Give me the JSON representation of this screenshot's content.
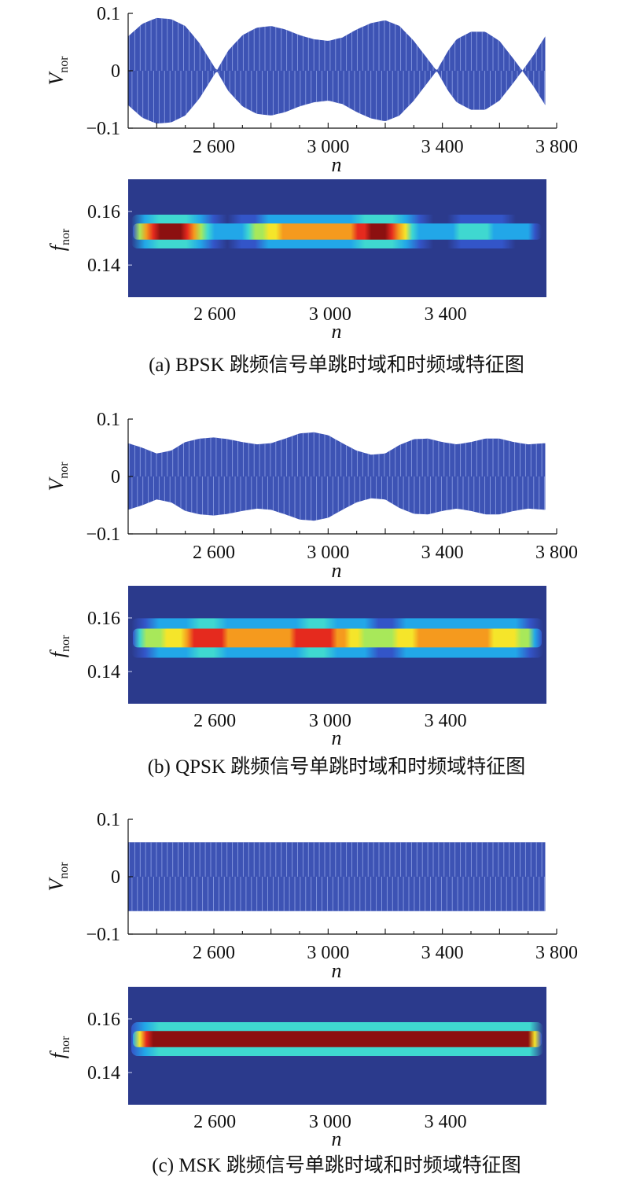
{
  "figure": {
    "panels": [
      {
        "caption": "(a) BPSK 跳频信号单跳时域和时频域特征图"
      },
      {
        "caption": "(b) QPSK 跳频信号单跳时域和时频域特征图"
      },
      {
        "caption": "(c) MSK 跳频信号单跳时域和时频域特征图"
      }
    ]
  },
  "colors": {
    "signal": "#3d53b4",
    "signal_light": "#9fb0ee",
    "background_dark": "#2b3a8c",
    "axis": "#111111",
    "colormap": [
      "#2b3a8c",
      "#3355c8",
      "#22a7e8",
      "#3fd8d0",
      "#a8e85a",
      "#f5e52a",
      "#f59a1e",
      "#e52a1e",
      "#8c1010",
      "#1a0a0a"
    ]
  },
  "chart_data": [
    {
      "type": "line",
      "panel": "a",
      "title": "",
      "xlabel": "n",
      "ylabel": "V",
      "ylabel_sub": "nor",
      "xlim": [
        2300,
        3800
      ],
      "ylim": [
        -0.1,
        0.1
      ],
      "xticks": [
        2600,
        3000,
        3400,
        3800
      ],
      "xtick_labels": [
        "2 600",
        "3 000",
        "3 400",
        "3 800"
      ],
      "yticks": [
        0.1,
        0,
        -0.1
      ],
      "ytick_labels": [
        "0.1",
        "0",
        "−0.1"
      ],
      "series": [
        {
          "x": [
            2300,
            2350,
            2400,
            2450,
            2500,
            2550,
            2610,
            2650,
            2700,
            2750,
            2800,
            2850,
            2900,
            2950,
            3000,
            3050,
            3100,
            3150,
            3200,
            3250,
            3300,
            3380,
            3420,
            3450,
            3500,
            3550,
            3600,
            3650,
            3680,
            3720,
            3760
          ],
          "y": [
            0.06,
            0.082,
            0.092,
            0.09,
            0.078,
            0.048,
            0.0,
            0.035,
            0.062,
            0.075,
            0.078,
            0.072,
            0.062,
            0.055,
            0.052,
            0.058,
            0.072,
            0.083,
            0.088,
            0.078,
            0.052,
            0.0,
            0.035,
            0.055,
            0.068,
            0.068,
            0.052,
            0.02,
            0.0,
            0.028,
            0.06
          ]
        }
      ]
    },
    {
      "type": "heatmap",
      "panel": "a",
      "title": "",
      "xlabel": "n",
      "ylabel": "f",
      "ylabel_sub": "nor",
      "xlim": [
        2300,
        3750
      ],
      "ylim": [
        0.128,
        0.172
      ],
      "xticks": [
        2600,
        3000,
        3400
      ],
      "xtick_labels": [
        "2 600",
        "3 000",
        "3 400"
      ],
      "yticks": [
        0.16,
        0.14
      ],
      "ytick_labels": [
        "0.16",
        "0.14"
      ],
      "band_f": 0.1525,
      "band_width": 0.006,
      "intensity": {
        "n": [
          2300,
          2330,
          2400,
          2450,
          2500,
          2560,
          2620,
          2700,
          2760,
          2850,
          2950,
          3050,
          3150,
          3210,
          3260,
          3320,
          3380,
          3440,
          3480,
          3520,
          3580,
          3640,
          3700,
          3750
        ],
        "value": [
          0.2,
          0.6,
          0.98,
          0.95,
          0.85,
          0.4,
          0.22,
          0.3,
          0.55,
          0.7,
          0.68,
          0.72,
          0.92,
          0.9,
          0.6,
          0.25,
          0.22,
          0.3,
          0.42,
          0.45,
          0.3,
          0.22,
          0.25,
          0.1
        ]
      }
    },
    {
      "type": "line",
      "panel": "b",
      "title": "",
      "xlabel": "n",
      "ylabel": "V",
      "ylabel_sub": "nor",
      "xlim": [
        2300,
        3800
      ],
      "ylim": [
        -0.1,
        0.1
      ],
      "xticks": [
        2600,
        3000,
        3400,
        3800
      ],
      "xtick_labels": [
        "2 600",
        "3 000",
        "3 400",
        "3 800"
      ],
      "yticks": [
        0.1,
        0,
        -0.1
      ],
      "ytick_labels": [
        "0.1",
        "0",
        "−0.1"
      ],
      "series": [
        {
          "x": [
            2300,
            2350,
            2400,
            2450,
            2500,
            2550,
            2600,
            2650,
            2700,
            2750,
            2800,
            2850,
            2900,
            2950,
            3000,
            3050,
            3100,
            3150,
            3200,
            3250,
            3300,
            3350,
            3400,
            3450,
            3500,
            3550,
            3600,
            3650,
            3700,
            3760
          ],
          "y": [
            0.058,
            0.05,
            0.04,
            0.045,
            0.06,
            0.066,
            0.068,
            0.065,
            0.06,
            0.056,
            0.058,
            0.066,
            0.075,
            0.077,
            0.072,
            0.058,
            0.045,
            0.038,
            0.04,
            0.055,
            0.065,
            0.066,
            0.06,
            0.056,
            0.06,
            0.066,
            0.066,
            0.06,
            0.056,
            0.058
          ]
        }
      ]
    },
    {
      "type": "heatmap",
      "panel": "b",
      "title": "",
      "xlabel": "n",
      "ylabel": "f",
      "ylabel_sub": "nor",
      "xlim": [
        2300,
        3750
      ],
      "ylim": [
        0.128,
        0.172
      ],
      "xticks": [
        2600,
        3000,
        3400
      ],
      "xtick_labels": [
        "2 600",
        "3 000",
        "3 400"
      ],
      "yticks": [
        0.16,
        0.14
      ],
      "ytick_labels": [
        "0.16",
        "0.14"
      ],
      "band_f": 0.1525,
      "band_width": 0.007,
      "intensity": {
        "n": [
          2300,
          2340,
          2400,
          2460,
          2520,
          2600,
          2680,
          2760,
          2840,
          2920,
          2980,
          3040,
          3100,
          3160,
          3220,
          3280,
          3340,
          3400,
          3460,
          3520,
          3580,
          3640,
          3700,
          3750
        ],
        "value": [
          0.2,
          0.45,
          0.55,
          0.6,
          0.8,
          0.82,
          0.72,
          0.7,
          0.74,
          0.82,
          0.88,
          0.7,
          0.55,
          0.5,
          0.52,
          0.62,
          0.72,
          0.78,
          0.75,
          0.7,
          0.66,
          0.6,
          0.5,
          0.15
        ]
      }
    },
    {
      "type": "line",
      "panel": "c",
      "title": "",
      "xlabel": "n",
      "ylabel": "V",
      "ylabel_sub": "nor",
      "xlim": [
        2300,
        3800
      ],
      "ylim": [
        -0.1,
        0.1
      ],
      "xticks": [
        2600,
        3000,
        3400,
        3800
      ],
      "xtick_labels": [
        "2 600",
        "3 000",
        "3 400",
        "3 800"
      ],
      "yticks": [
        0.1,
        0,
        -0.1
      ],
      "ytick_labels": [
        "0.1",
        "0",
        "−0.1"
      ],
      "series": [
        {
          "x": [
            2300,
            3760
          ],
          "y": [
            0.06,
            0.06
          ]
        }
      ]
    },
    {
      "type": "heatmap",
      "panel": "c",
      "title": "",
      "xlabel": "n",
      "ylabel": "f",
      "ylabel_sub": "nor",
      "xlim": [
        2300,
        3750
      ],
      "ylim": [
        0.128,
        0.172
      ],
      "xticks": [
        2600,
        3000,
        3400
      ],
      "xtick_labels": [
        "2 600",
        "3 000",
        "3 400"
      ],
      "yticks": [
        0.16,
        0.14
      ],
      "ytick_labels": [
        "0.16",
        "0.14"
      ],
      "band_f": 0.1525,
      "band_width": 0.006,
      "intensity": {
        "n": [
          2300,
          2330,
          2380,
          3700,
          3730,
          3750
        ],
        "value": [
          0.3,
          0.7,
          0.95,
          0.95,
          0.6,
          0.2
        ]
      }
    }
  ]
}
